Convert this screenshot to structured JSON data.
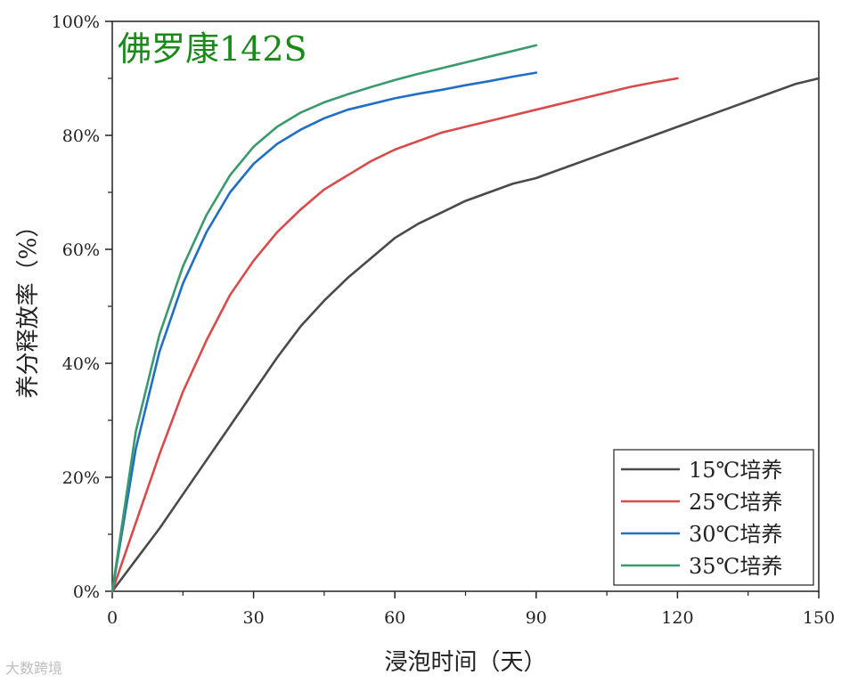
{
  "watermark": "大数跨境",
  "chart_data": {
    "type": "line",
    "title": "佛罗康142S",
    "title_color": "#1a8a1a",
    "xlabel": "浸泡时间（天）",
    "ylabel": "养分释放率（%）",
    "xlim": [
      0,
      150
    ],
    "ylim": [
      0,
      100
    ],
    "xticks": [
      0,
      30,
      60,
      90,
      120,
      150
    ],
    "yticks": [
      0,
      20,
      40,
      60,
      80,
      100
    ],
    "ytick_labels": [
      "0%",
      "20%",
      "40%",
      "60%",
      "80%",
      "100%"
    ],
    "grid": false,
    "legend_position": "bottom-right",
    "series": [
      {
        "name": "15℃培养",
        "color": "#4a4a4a",
        "x": [
          0,
          5,
          10,
          15,
          20,
          25,
          30,
          35,
          40,
          45,
          50,
          55,
          60,
          65,
          70,
          75,
          80,
          85,
          90,
          95,
          100,
          105,
          110,
          115,
          120,
          125,
          130,
          135,
          140,
          145,
          150
        ],
        "y": [
          0,
          5.5,
          11,
          17,
          23,
          29,
          35,
          41,
          46.5,
          51,
          55,
          58.5,
          62,
          64.5,
          66.5,
          68.5,
          70,
          71.5,
          72.5,
          74,
          75.5,
          77,
          78.5,
          80,
          81.5,
          83,
          84.5,
          86,
          87.5,
          89,
          90
        ]
      },
      {
        "name": "25℃培养",
        "color": "#d94a4a",
        "x": [
          0,
          5,
          10,
          15,
          20,
          25,
          30,
          35,
          40,
          45,
          50,
          55,
          60,
          65,
          70,
          75,
          80,
          85,
          90,
          95,
          100,
          105,
          110,
          115,
          120
        ],
        "y": [
          0,
          12,
          24,
          35,
          44,
          52,
          58,
          63,
          67,
          70.5,
          73,
          75.5,
          77.5,
          79,
          80.5,
          81.5,
          82.5,
          83.5,
          84.5,
          85.5,
          86.5,
          87.5,
          88.5,
          89.3,
          90
        ]
      },
      {
        "name": "30℃培养",
        "color": "#1f6fc4",
        "x": [
          0,
          5,
          10,
          15,
          20,
          25,
          30,
          35,
          40,
          45,
          50,
          55,
          60,
          65,
          70,
          75,
          80,
          85,
          90
        ],
        "y": [
          0,
          25,
          42,
          54,
          63,
          70,
          75,
          78.5,
          81,
          83,
          84.5,
          85.5,
          86.5,
          87.3,
          88,
          88.8,
          89.5,
          90.3,
          91
        ]
      },
      {
        "name": "35℃培养",
        "color": "#3a9a6e",
        "x": [
          0,
          5,
          10,
          15,
          20,
          25,
          30,
          35,
          40,
          45,
          50,
          55,
          60,
          65,
          70,
          75,
          80,
          85,
          90
        ],
        "y": [
          0,
          28,
          45,
          57,
          66,
          73,
          78,
          81.5,
          84,
          85.8,
          87.2,
          88.5,
          89.7,
          90.8,
          91.8,
          92.8,
          93.8,
          94.8,
          95.8
        ]
      }
    ]
  }
}
